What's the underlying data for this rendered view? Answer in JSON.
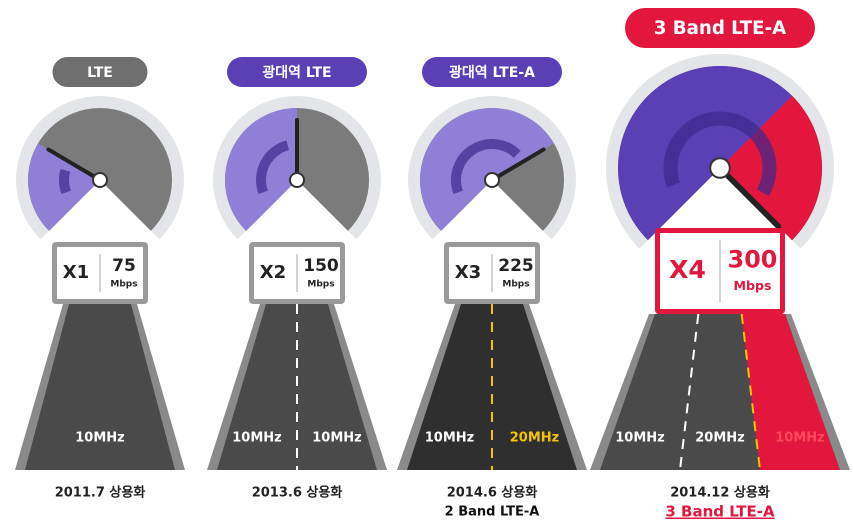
{
  "panels": [
    {
      "label": "LTE",
      "multiplier": "X1",
      "speed": "75",
      "unit": "Mbps",
      "lanes": [
        "10MHz"
      ],
      "date": "2011.7 상용화"
    },
    {
      "label": "광대역 LTE",
      "multiplier": "X2",
      "speed": "150",
      "unit": "Mbps",
      "lanes": [
        "10MHz",
        "10MHz"
      ],
      "date": "2013.6 상용화"
    },
    {
      "label": "광대역 LTE-A",
      "multiplier": "X3",
      "speed": "225",
      "unit": "Mbps",
      "lanes": [
        "10MHz",
        "20MHz"
      ],
      "date": "2014.6 상용화",
      "note": "2 Band LTE-A"
    },
    {
      "label": "3 Band LTE-A",
      "multiplier": "X4",
      "speed": "300",
      "unit": "Mbps",
      "lanes": [
        "10MHz",
        "20MHz",
        "10MHz"
      ],
      "date": "2014.12 상용화",
      "note": "3 Band LTE-A"
    }
  ]
}
